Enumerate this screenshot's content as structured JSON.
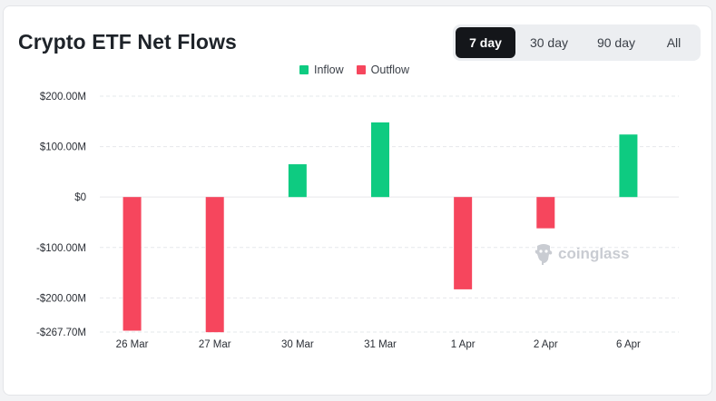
{
  "header": {
    "title": "Crypto ETF Net Flows"
  },
  "range_tabs": [
    {
      "label": "7 day",
      "active": true
    },
    {
      "label": "30 day",
      "active": false
    },
    {
      "label": "90 day",
      "active": false
    },
    {
      "label": "All",
      "active": false
    }
  ],
  "watermark": {
    "text": "coinglass",
    "icon": "coinglass-logo-icon"
  },
  "colors": {
    "inflow": "#0ecb81",
    "outflow": "#f6465d",
    "grid": "#e6e8eb"
  },
  "chart_data": {
    "type": "bar",
    "title": "Crypto ETF Net Flows",
    "legend": {
      "position": "top-center",
      "entries": [
        "Inflow",
        "Outflow"
      ]
    },
    "categories": [
      "26 Mar",
      "27 Mar",
      "30 Mar",
      "31 Mar",
      "1 Apr",
      "2 Apr",
      "6 Apr"
    ],
    "values": [
      -265,
      -268,
      65,
      148,
      -183,
      -62,
      124
    ],
    "unit": "M",
    "ylim": [
      -267.7,
      200
    ],
    "yticks": [
      {
        "value": 200,
        "label": "$200.00M"
      },
      {
        "value": 100,
        "label": "$100.00M"
      },
      {
        "value": 0,
        "label": "$0"
      },
      {
        "value": -100,
        "label": "-$100.00M"
      },
      {
        "value": -200,
        "label": "-$200.00M"
      },
      {
        "value": -267.7,
        "label": "-$267.70M"
      }
    ],
    "grid": true,
    "xlabel": "",
    "ylabel": ""
  }
}
